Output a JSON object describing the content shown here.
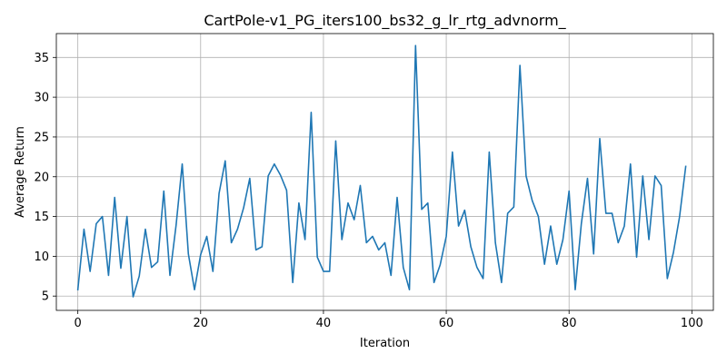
{
  "chart_data": {
    "type": "line",
    "title": "CartPole-v1_PG_iters100_bs32_g_lr_rtg_advnorm_",
    "xlabel": "Iteration",
    "ylabel": "Average Return",
    "xlim": [
      -3.5,
      103.5
    ],
    "ylim": [
      3.2,
      38.0
    ],
    "xticks": [
      0,
      20,
      40,
      60,
      80,
      100
    ],
    "yticks": [
      5,
      10,
      15,
      20,
      25,
      30,
      35
    ],
    "grid": true,
    "color": "#1f77b4",
    "series": [
      {
        "x": [
          0,
          1,
          2,
          3,
          4,
          5,
          6,
          7,
          8,
          9,
          10,
          11,
          12,
          13,
          14,
          15,
          16,
          17,
          18,
          19,
          20,
          21,
          22,
          23,
          24,
          25,
          26,
          27,
          28,
          29,
          30,
          31,
          32,
          33,
          34,
          35,
          36,
          37,
          38,
          39,
          40,
          41,
          42,
          43,
          44,
          45,
          46,
          47,
          48,
          49,
          50,
          51,
          52,
          53,
          54,
          55,
          56,
          57,
          58,
          59,
          60,
          61,
          62,
          63,
          64,
          65,
          66,
          67,
          68,
          69,
          70,
          71,
          72,
          73,
          74,
          75,
          76,
          77,
          78,
          79,
          80,
          81,
          82,
          83,
          84,
          85,
          86,
          87,
          88,
          89,
          90,
          91,
          92,
          93,
          94,
          95,
          96,
          97,
          98,
          99
        ],
        "y": [
          5.8,
          13.4,
          8.1,
          14.1,
          15.0,
          7.6,
          17.4,
          8.5,
          15.0,
          4.9,
          7.5,
          13.4,
          8.6,
          9.3,
          18.2,
          7.6,
          13.9,
          21.6,
          10.3,
          5.8,
          10.2,
          12.5,
          8.1,
          17.9,
          22.0,
          11.7,
          13.4,
          16.1,
          19.8,
          10.8,
          11.2,
          20.1,
          21.6,
          20.2,
          18.3,
          6.7,
          16.7,
          12.1,
          28.1,
          9.9,
          8.1,
          8.1,
          24.5,
          12.1,
          16.7,
          14.6,
          18.9,
          11.7,
          12.5,
          10.8,
          11.7,
          7.6,
          17.4,
          8.6,
          5.8,
          36.5,
          15.9,
          16.7,
          6.7,
          8.9,
          12.5,
          23.1,
          13.8,
          15.8,
          11.2,
          8.6,
          7.2,
          23.1,
          11.7,
          6.7,
          15.4,
          16.2,
          34.0,
          20.1,
          17.0,
          15.0,
          9.0,
          13.8,
          9.0,
          12.1,
          18.2,
          5.8,
          14.1,
          19.8,
          10.3,
          24.8,
          15.4,
          15.4,
          11.7,
          13.8,
          21.6,
          9.9,
          20.1,
          12.1,
          20.1,
          18.9,
          7.2,
          10.5,
          15.0,
          21.3
        ]
      }
    ]
  }
}
